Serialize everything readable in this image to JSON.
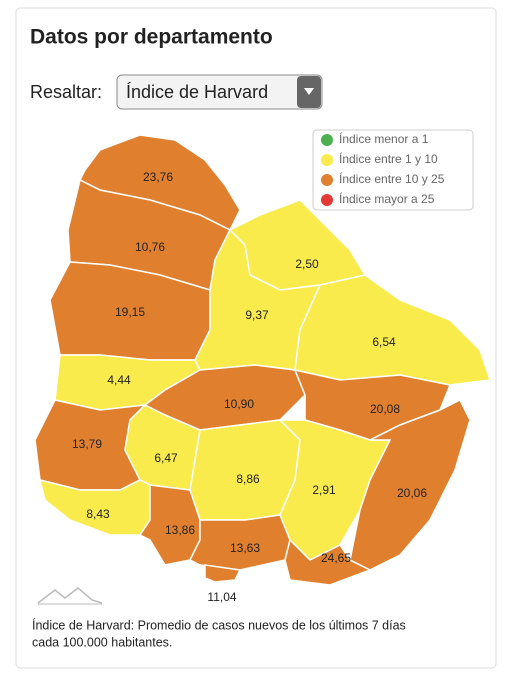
{
  "header": {
    "title": "Datos por departamento"
  },
  "control": {
    "label": "Resaltar:",
    "selected": "Índice de Harvard"
  },
  "legend": {
    "items": [
      "Índice menor a 1",
      "Índice entre 1 y 10",
      "Índice entre 10 y 25",
      "Índice mayor a 25"
    ]
  },
  "departments": [
    "23,76",
    "10,76",
    "19,15",
    "2,50",
    "9,37",
    "6,54",
    "4,44",
    "10,90",
    "20,08",
    "13,79",
    "6,47",
    "8,86",
    "2,91",
    "20,06",
    "8,43",
    "13,86",
    "13,63",
    "24,65",
    "11,04"
  ],
  "footnote": [
    "Índice de Harvard: Promedio de casos nuevos de los últimos 7 días",
    "cada 100.000 habitantes."
  ]
}
